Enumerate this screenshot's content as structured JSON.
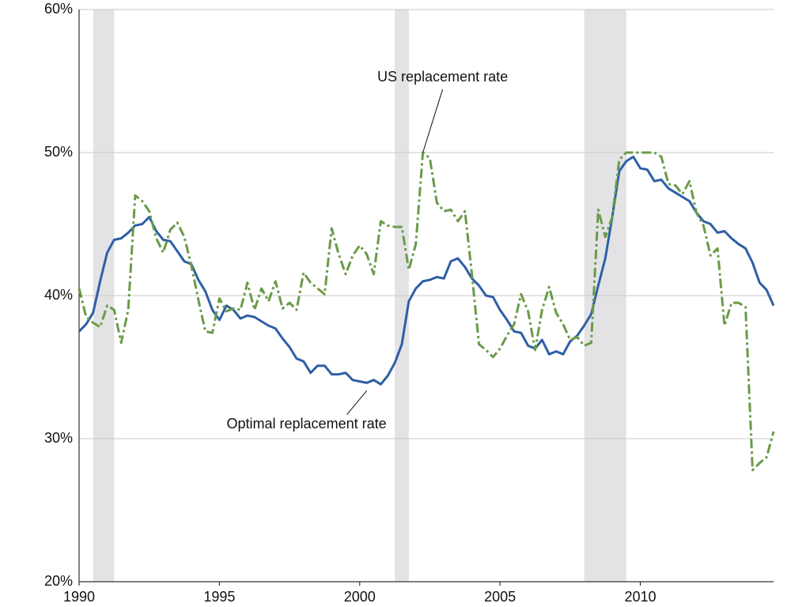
{
  "chart_data": {
    "type": "line",
    "x": [
      1990,
      1990.25,
      1990.5,
      1990.75,
      1991,
      1991.25,
      1991.5,
      1991.75,
      1992,
      1992.25,
      1992.5,
      1992.75,
      1993,
      1993.25,
      1993.5,
      1993.75,
      1994,
      1994.25,
      1994.5,
      1994.75,
      1995,
      1995.25,
      1995.5,
      1995.75,
      1996,
      1996.25,
      1996.5,
      1996.75,
      1997,
      1997.25,
      1997.5,
      1997.75,
      1998,
      1998.25,
      1998.5,
      1998.75,
      1999,
      1999.25,
      1999.5,
      1999.75,
      2000,
      2000.25,
      2000.5,
      2000.75,
      2001,
      2001.25,
      2001.5,
      2001.75,
      2002,
      2002.25,
      2002.5,
      2002.75,
      2003,
      2003.25,
      2003.5,
      2003.75,
      2004,
      2004.25,
      2004.5,
      2004.75,
      2005,
      2005.25,
      2005.5,
      2005.75,
      2006,
      2006.25,
      2006.5,
      2006.75,
      2007,
      2007.25,
      2007.5,
      2007.75,
      2008,
      2008.25,
      2008.5,
      2008.75,
      2009,
      2009.25,
      2009.5,
      2009.75,
      2010,
      2010.25,
      2010.5,
      2010.75,
      2011,
      2011.25,
      2011.5,
      2011.75,
      2012,
      2012.25,
      2012.5,
      2012.75,
      2013,
      2013.25,
      2013.5,
      2013.75,
      2014,
      2014.25,
      2014.5,
      2014.75
    ],
    "series": [
      {
        "name": "Optimal replacement rate",
        "color": "#2e5fa6",
        "dash": false,
        "values": [
          37.5,
          38.0,
          38.8,
          41.0,
          43.0,
          43.9,
          44.0,
          44.4,
          44.9,
          45.0,
          45.5,
          44.5,
          43.9,
          43.8,
          43.1,
          42.4,
          42.2,
          41.1,
          40.3,
          39.0,
          38.3,
          39.3,
          39.0,
          38.4,
          38.6,
          38.5,
          38.2,
          37.9,
          37.7,
          37.0,
          36.4,
          35.6,
          35.4,
          34.6,
          35.1,
          35.1,
          34.5,
          34.5,
          34.6,
          34.1,
          34.0,
          33.9,
          34.1,
          33.8,
          34.4,
          35.3,
          36.6,
          39.6,
          40.5,
          41.0,
          41.1,
          41.3,
          41.2,
          42.4,
          42.6,
          42.0,
          41.2,
          40.7,
          40.0,
          39.9,
          39.0,
          38.3,
          37.5,
          37.4,
          36.5,
          36.3,
          36.9,
          35.9,
          36.1,
          35.9,
          36.8,
          37.2,
          37.9,
          38.7,
          40.7,
          42.6,
          45.5,
          48.7,
          49.4,
          49.7,
          48.9,
          48.8,
          48.0,
          48.1,
          47.5,
          47.2,
          46.9,
          46.6,
          45.8,
          45.2,
          45.0,
          44.4,
          44.5,
          44.0,
          43.6,
          43.3,
          42.3,
          40.9,
          40.4,
          39.3
        ]
      },
      {
        "name": "US replacement rate",
        "color": "#6a9a48",
        "dash": true,
        "values": [
          40.5,
          38.5,
          38.1,
          37.8,
          39.3,
          39.0,
          36.7,
          39.0,
          47.0,
          46.6,
          45.9,
          44.0,
          43.0,
          44.6,
          45.1,
          44.1,
          42.1,
          39.7,
          37.5,
          37.4,
          39.8,
          38.9,
          39.1,
          39.0,
          40.9,
          39.0,
          40.5,
          39.6,
          41.0,
          39.1,
          39.5,
          39.0,
          41.6,
          40.9,
          40.5,
          40.1,
          44.7,
          42.9,
          41.5,
          42.8,
          43.5,
          42.9,
          41.5,
          45.2,
          44.9,
          44.8,
          44.8,
          41.8,
          43.6,
          50.0,
          49.6,
          46.5,
          45.9,
          46.0,
          45.2,
          45.9,
          41.5,
          36.6,
          36.2,
          35.7,
          36.3,
          37.2,
          38.0,
          40.1,
          38.9,
          36.2,
          39.0,
          40.6,
          38.8,
          38.0,
          36.9,
          37.1,
          36.5,
          36.7,
          46.0,
          44.1,
          45.5,
          49.5,
          50.0,
          50.0,
          50.0,
          50.0,
          50.0,
          49.7,
          47.8,
          47.7,
          47.1,
          48.0,
          45.8,
          44.9,
          42.8,
          43.3,
          37.9,
          39.5,
          39.5,
          39.2,
          27.8,
          28.3,
          28.7,
          30.5
        ]
      }
    ],
    "shaded_periods": [
      [
        1990.5,
        1991.25
      ],
      [
        2001.25,
        2001.75
      ],
      [
        2008.0,
        2009.5
      ]
    ],
    "shade_color": "#e3e3e5",
    "xlim": [
      1990,
      2014.75
    ],
    "xticks": [
      1990,
      1995,
      2000,
      2005,
      2010
    ],
    "ylim": [
      20,
      60
    ],
    "yticks": [
      {
        "value": 20,
        "label": "20%"
      },
      {
        "value": 30,
        "label": "30%"
      },
      {
        "value": 40,
        "label": "40%"
      },
      {
        "value": 50,
        "label": "50%"
      },
      {
        "value": 60,
        "label": "60%"
      }
    ],
    "grid": true,
    "annotations": [
      {
        "text": "US replacement rate",
        "series": 1,
        "x": 2002.25
      },
      {
        "text": "Optimal replacement rate",
        "series": 0,
        "x": 2000.25
      }
    ]
  }
}
